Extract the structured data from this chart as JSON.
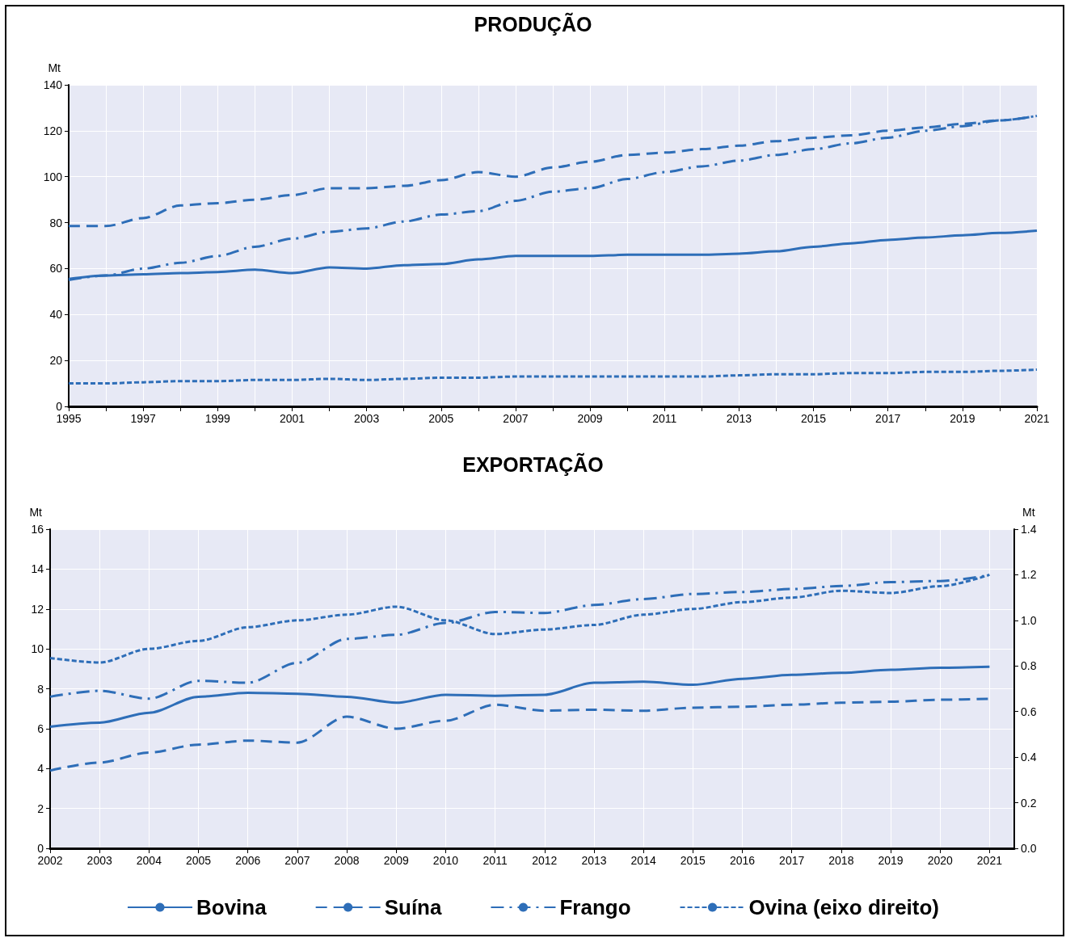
{
  "chart_data": [
    {
      "type": "line",
      "title": "PRODUÇÃO",
      "ylabel": "Mt",
      "x": [
        1995,
        1996,
        1997,
        1998,
        1999,
        2000,
        2001,
        2002,
        2003,
        2004,
        2005,
        2006,
        2007,
        2008,
        2009,
        2010,
        2011,
        2012,
        2013,
        2014,
        2015,
        2016,
        2017,
        2018,
        2019,
        2020,
        2021
      ],
      "series": [
        {
          "color": "#2e6eb8",
          "line_style": "solid",
          "values": [
            55.5,
            57,
            57.5,
            58,
            58.5,
            59.5,
            58,
            60.5,
            60,
            61.5,
            62,
            64,
            65.5,
            65.5,
            65.5,
            66,
            66,
            66,
            66.5,
            67.5,
            69.5,
            71,
            72.5,
            73.5,
            74.5,
            75.5,
            76.5
          ]
        },
        {
          "color": "#2e6eb8",
          "line_style": "dashed",
          "values": [
            78.5,
            78.5,
            82,
            87.5,
            88.5,
            90,
            92,
            95,
            95,
            96,
            98.5,
            102,
            100,
            104,
            106.5,
            109.5,
            110.5,
            112,
            113.5,
            115.5,
            117,
            118,
            120,
            121.5,
            123,
            124.5,
            126.5
          ]
        },
        {
          "color": "#2e6eb8",
          "line_style": "dashdot",
          "values": [
            55,
            57,
            60,
            62.5,
            65.5,
            69.5,
            73,
            76,
            77.5,
            80.5,
            83.5,
            85,
            89.5,
            93.5,
            95,
            99,
            102,
            104.5,
            107,
            109.5,
            112,
            114.5,
            117,
            120,
            122,
            124.5,
            126.5
          ]
        },
        {
          "color": "#2e6eb8",
          "line_style": "dotted",
          "values": [
            10,
            10,
            10.5,
            11,
            11,
            11.5,
            11.5,
            12,
            11.5,
            12,
            12.5,
            12.5,
            13,
            13,
            13,
            13,
            13,
            13,
            13.5,
            14,
            14,
            14.5,
            14.5,
            15,
            15,
            15.5,
            16
          ]
        }
      ],
      "xlim": [
        1995,
        2021
      ],
      "xticks": [
        1995,
        {
          "value": 1996,
          "label": null
        },
        1997,
        {
          "value": 1998,
          "label": null
        },
        1999,
        {
          "value": 2000,
          "label": null
        },
        2001,
        {
          "value": 2002,
          "label": null
        },
        2003,
        {
          "value": 2004,
          "label": null
        },
        2005,
        {
          "value": 2006,
          "label": null
        },
        2007,
        {
          "value": 2008,
          "label": null
        },
        2009,
        {
          "value": 2010,
          "label": null
        },
        2011,
        {
          "value": 2012,
          "label": null
        },
        2013,
        {
          "value": 2014,
          "label": null
        },
        2015,
        {
          "value": 2016,
          "label": null
        },
        2017,
        {
          "value": 2018,
          "label": null
        },
        2019,
        {
          "value": 2020,
          "label": null
        },
        2021
      ],
      "ylim": [
        0,
        140
      ],
      "yticks": [
        0,
        20,
        40,
        60,
        80,
        100,
        120,
        140
      ],
      "grid": true,
      "legend": false,
      "marker": "none"
    },
    {
      "type": "line",
      "title": "EXPORTAÇÃO",
      "ylabel": "Mt",
      "y2label": "Mt",
      "x": [
        2002,
        2003,
        2004,
        2005,
        2006,
        2007,
        2008,
        2009,
        2010,
        2011,
        2012,
        2013,
        2014,
        2015,
        2016,
        2017,
        2018,
        2019,
        2020,
        2021
      ],
      "series": [
        {
          "name": "Bovina",
          "color": "#2e6eb8",
          "line_style": "solid",
          "values": [
            6.1,
            6.3,
            6.8,
            7.6,
            7.8,
            7.75,
            7.6,
            7.3,
            7.7,
            7.65,
            7.7,
            8.3,
            8.35,
            8.2,
            8.5,
            8.7,
            8.8,
            8.95,
            9.05,
            9.1
          ]
        },
        {
          "name": "Suína",
          "color": "#2e6eb8",
          "line_style": "dashed",
          "values": [
            3.9,
            4.3,
            4.8,
            5.2,
            5.4,
            5.3,
            6.6,
            6.0,
            6.4,
            7.2,
            6.9,
            6.95,
            6.9,
            7.05,
            7.1,
            7.2,
            7.3,
            7.35,
            7.45,
            7.5
          ]
        },
        {
          "name": "Frango",
          "color": "#2e6eb8",
          "line_style": "dashdot",
          "values": [
            7.6,
            7.9,
            7.5,
            8.4,
            8.3,
            9.3,
            10.5,
            10.7,
            11.3,
            11.85,
            11.8,
            12.2,
            12.5,
            12.75,
            12.85,
            13.0,
            13.15,
            13.35,
            13.4,
            13.7
          ]
        },
        {
          "name": "Ovina (eixo direito)",
          "color": "#2e6eb8",
          "line_style": "dotted",
          "axis": "y2",
          "values": [
            0.835,
            0.815,
            0.875,
            0.91,
            0.97,
            1.0,
            1.025,
            1.06,
            1.0,
            0.94,
            0.96,
            0.98,
            1.025,
            1.05,
            1.08,
            1.1,
            1.13,
            1.12,
            1.15,
            1.2
          ]
        }
      ],
      "xlim": [
        2002,
        2021.5
      ],
      "xticks": [
        2002,
        2003,
        2004,
        2005,
        2006,
        2007,
        2008,
        2009,
        2010,
        2011,
        2012,
        2013,
        2014,
        2015,
        2016,
        2017,
        2018,
        2019,
        2020,
        2021
      ],
      "ylim": [
        0,
        16
      ],
      "yticks": [
        0,
        2,
        4,
        6,
        8,
        10,
        12,
        14,
        16
      ],
      "y2lim": [
        0,
        1.4
      ],
      "y2ticks": [
        {
          "value": 0,
          "label": "0.0"
        },
        0.2,
        0.4,
        0.6,
        0.8,
        {
          "value": 1,
          "label": "1.0"
        },
        1.2,
        1.4
      ],
      "grid": true,
      "legend": "bottom",
      "marker": "none"
    }
  ]
}
